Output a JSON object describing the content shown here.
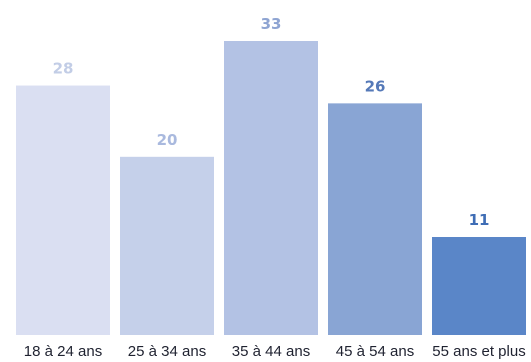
{
  "chart_data": {
    "type": "bar",
    "categories": [
      "18 à 24 ans",
      "25 à 34 ans",
      "35 à 44 ans",
      "45 à 54 ans",
      "55 ans et plus"
    ],
    "values": [
      28,
      20,
      33,
      26,
      11
    ],
    "title": "",
    "xlabel": "",
    "ylabel": "",
    "ylim": [
      0,
      33
    ],
    "grid": false,
    "legend": "none",
    "bar_colors": [
      "#dadff2",
      "#c5d0ea",
      "#b3c2e4",
      "#89a5d4",
      "#5a86c8"
    ],
    "value_label_colors": [
      "#c2cde6",
      "#a9b9de",
      "#8ea4d2",
      "#5579b8",
      "#3f6db5"
    ]
  }
}
